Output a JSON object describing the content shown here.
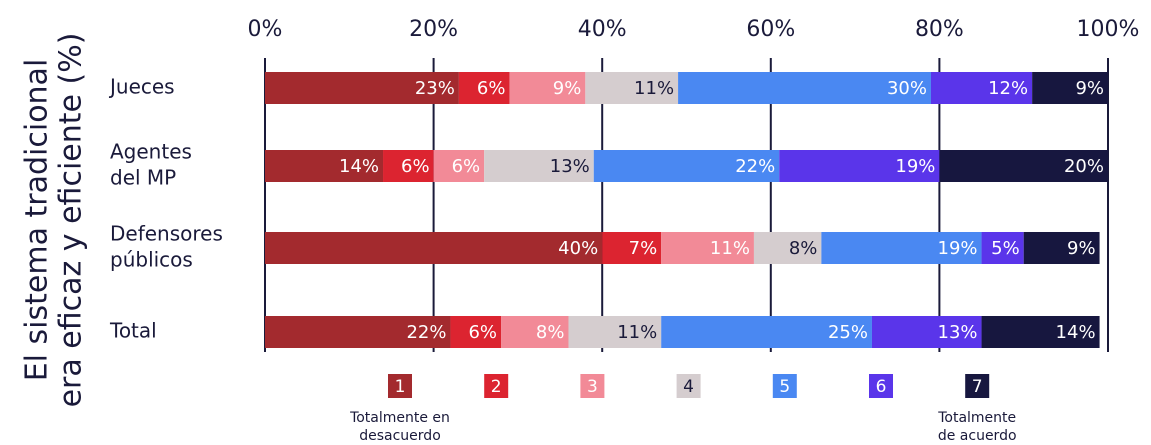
{
  "chart_data": {
    "type": "stacked_barh",
    "y_label": [
      "El sistema tradicional",
      "era eficaz y eficiente (%)"
    ],
    "categories": [
      [
        "Jueces"
      ],
      [
        "Agentes",
        "del MP"
      ],
      [
        "Defensores",
        "públicos"
      ],
      [
        "Total"
      ]
    ],
    "series": [
      {
        "name": "1",
        "color": "#a32a2e",
        "text_color": "#ffffff",
        "values": [
          23,
          14,
          40,
          22
        ],
        "value_labels": [
          "23%",
          "14%",
          "40%",
          "22%"
        ]
      },
      {
        "name": "2",
        "color": "#dc2430",
        "text_color": "#ffffff",
        "values": [
          6,
          6,
          7,
          6
        ],
        "value_labels": [
          "6%",
          "6%",
          "7%",
          "6%"
        ]
      },
      {
        "name": "3",
        "color": "#f28a97",
        "text_color": "#ffffff",
        "values": [
          9,
          6,
          11,
          8
        ],
        "value_labels": [
          "9%",
          "6%",
          "11%",
          "8%"
        ]
      },
      {
        "name": "4",
        "color": "#d5cdcf",
        "text_color": "#1a1a3a",
        "values": [
          11,
          13,
          8,
          11
        ],
        "value_labels": [
          "11%",
          "13%",
          "8%",
          "11%"
        ]
      },
      {
        "name": "5",
        "color": "#4a88f2",
        "text_color": "#ffffff",
        "values": [
          30,
          22,
          19,
          25
        ],
        "value_labels": [
          "30%",
          "22%",
          "19%",
          "25%"
        ]
      },
      {
        "name": "6",
        "color": "#5a35ea",
        "text_color": "#ffffff",
        "values": [
          12,
          19,
          5,
          13
        ],
        "value_labels": [
          "12%",
          "19%",
          "5%",
          "13%"
        ]
      },
      {
        "name": "7",
        "color": "#17173f",
        "text_color": "#ffffff",
        "values": [
          9,
          20,
          9,
          14
        ],
        "value_labels": [
          "9%",
          "20%",
          "9%",
          "14%"
        ]
      }
    ],
    "xlim": [
      0,
      100
    ],
    "xticks": [
      {
        "value": 0,
        "label": "0%"
      },
      {
        "value": 20,
        "label": "20%"
      },
      {
        "value": 40,
        "label": "40%"
      },
      {
        "value": 60,
        "label": "60%"
      },
      {
        "value": 80,
        "label": "80%"
      },
      {
        "value": 100,
        "label": "100%"
      }
    ],
    "grid": true,
    "legend_notes": [
      {
        "series": 0,
        "lines": [
          "Totalmente en",
          "desacuerdo"
        ]
      },
      {
        "series": 6,
        "lines": [
          "Totalmente",
          "de acuerdo"
        ]
      }
    ]
  }
}
